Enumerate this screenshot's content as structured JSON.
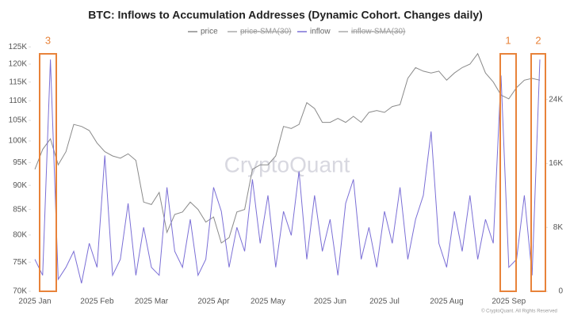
{
  "chart_data": {
    "type": "line",
    "title": "BTC: Inflows to Accumulation Addresses (Dynamic Cohort. Changes daily)",
    "watermark": "CryptoQuant",
    "copyright": "© CryptoQuant. All Rights Reserved",
    "categories": [
      "2025 Jan",
      null,
      null,
      null,
      null,
      null,
      null,
      null,
      "2025 Feb",
      null,
      null,
      null,
      null,
      null,
      null,
      "2025 Mar",
      null,
      null,
      null,
      null,
      null,
      null,
      null,
      "2025 Apr",
      null,
      null,
      null,
      null,
      null,
      null,
      "2025 May",
      null,
      null,
      null,
      null,
      null,
      null,
      null,
      "2025 Jun",
      null,
      null,
      null,
      null,
      null,
      null,
      "2025 Jul",
      null,
      null,
      null,
      null,
      null,
      null,
      null,
      "2025 Aug",
      null,
      null,
      null,
      null,
      null,
      null,
      null,
      "2025 Sep",
      null,
      null,
      null,
      null
    ],
    "log_y": true,
    "ylim": [
      70000,
      126000
    ],
    "yticks": [
      {
        "value": 70000,
        "label": "70K"
      },
      {
        "value": 75000,
        "label": "75K"
      },
      {
        "value": 80000,
        "label": "80K"
      },
      {
        "value": 85000,
        "label": "85K"
      },
      {
        "value": 90000,
        "label": "90K"
      },
      {
        "value": 95000,
        "label": "95K"
      },
      {
        "value": 100000,
        "label": "100K"
      },
      {
        "value": 105000,
        "label": "105K"
      },
      {
        "value": 110000,
        "label": "110K"
      },
      {
        "value": 115000,
        "label": "115K"
      },
      {
        "value": 120000,
        "label": "120K"
      },
      {
        "value": 125000,
        "label": "125K"
      }
    ],
    "y2lim": [
      0,
      31000
    ],
    "y2ticks": [
      0,
      {
        "value": 8000,
        "label": "8K"
      },
      {
        "value": 16000,
        "label": "16K"
      },
      {
        "value": 24000,
        "label": "24K"
      }
    ],
    "series": [
      {
        "name": "price",
        "color": "#8a8a8a",
        "values": [
          93500,
          98000,
          100500,
          94500,
          97500,
          104000,
          103500,
          102500,
          99500,
          97500,
          96500,
          96000,
          97000,
          95500,
          86500,
          86000,
          88500,
          80500,
          84000,
          84500,
          86500,
          85000,
          82500,
          83500,
          78500,
          79500,
          84500,
          85000,
          93500,
          94500,
          94500,
          96500,
          103500,
          103000,
          104000,
          109500,
          108000,
          104500,
          104500,
          105500,
          104500,
          106000,
          104500,
          107000,
          107500,
          107000,
          108500,
          109000,
          116000,
          119000,
          118000,
          117500,
          118000,
          115500,
          117500,
          119000,
          120000,
          123000,
          117500,
          115000,
          111500,
          110500,
          113500,
          115500,
          116000,
          115500
        ]
      },
      {
        "name": "inflow",
        "color": "#7b6fd6",
        "axis": "y2",
        "values": [
          4000,
          2000,
          29000,
          1500,
          3000,
          5000,
          1000,
          6000,
          3000,
          17000,
          2000,
          4000,
          11000,
          2000,
          8000,
          3000,
          2000,
          13000,
          5000,
          3000,
          9000,
          2000,
          4000,
          13000,
          10000,
          3000,
          8000,
          5000,
          14000,
          6000,
          12000,
          3000,
          10000,
          7000,
          15000,
          4000,
          12000,
          5000,
          9000,
          2000,
          11000,
          14000,
          4000,
          8000,
          3000,
          10000,
          6000,
          13000,
          4000,
          9000,
          12000,
          20000,
          6000,
          3000,
          10000,
          5000,
          12000,
          4000,
          9000,
          6000,
          27000,
          3000,
          4000,
          12000,
          2000,
          29000
        ]
      }
    ],
    "hidden_series": [
      {
        "name": "price-SMA(30)",
        "color": "#aaaaaa"
      },
      {
        "name": "inflow-SMA(30)",
        "color": "#aaaaaa"
      }
    ],
    "annotations": [
      "3",
      "1",
      "2"
    ],
    "annotation_color": "#e8833a"
  }
}
